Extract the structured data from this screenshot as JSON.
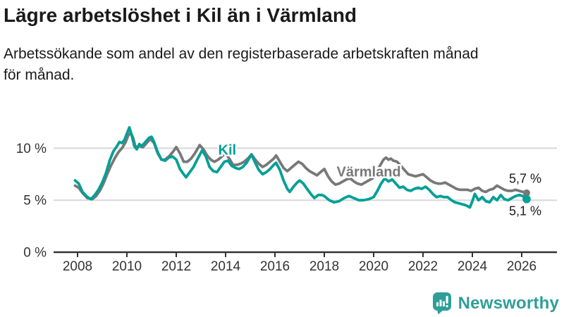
{
  "title": "Lägre arbetslöshet i Kil än i Värmland",
  "subtitle": "Arbetssökande som andel av den registerbaserade arbetskraften månad\nför månad.",
  "branding": {
    "logo_text": "Newsworthy",
    "logo_icon": "bar-chart-speech-bubble-icon",
    "brand_color": "#2f9e98"
  },
  "colors": {
    "kil_line": "#00a096",
    "varmland_line": "#787878",
    "heading_text": "#1a1a1a",
    "axis_text": "#333333",
    "axis_line": "#333333",
    "gridline": "#d8d8d8",
    "end_label_text": "#1a1a1a",
    "background": "#ffffff"
  },
  "chart_data": {
    "type": "line",
    "title": "Lägre arbetslöshet i Kil än i Värmland",
    "subtitle": "Arbetssökande som andel av den registerbaserade arbetskraften månad för månad.",
    "unit": "%",
    "grid": "horizontal",
    "x_axis": {
      "range": [
        2007.9,
        2026.6
      ],
      "ticks": [
        2008,
        2010,
        2012,
        2014,
        2016,
        2018,
        2020,
        2022,
        2024,
        2026
      ],
      "tick_labels": [
        "2008",
        "2010",
        "2012",
        "2014",
        "2016",
        "2018",
        "2020",
        "2022",
        "2024",
        "2026"
      ]
    },
    "y_axis": {
      "range": [
        0,
        13.5
      ],
      "ticks": [
        {
          "value": 0,
          "label": "0 %"
        },
        {
          "value": 5,
          "label": "5 %"
        },
        {
          "value": 10,
          "label": "10 %"
        }
      ]
    },
    "series": [
      {
        "name": "Värmland",
        "color": "#787878",
        "end_label": "5,7 %",
        "end_label_position": "above",
        "label_at": [
          2018.5,
          7.3
        ],
        "points": [
          [
            2007.9,
            6.4
          ],
          [
            2008.05,
            6.2
          ],
          [
            2008.2,
            5.7
          ],
          [
            2008.4,
            5.2
          ],
          [
            2008.6,
            5.1
          ],
          [
            2008.75,
            5.4
          ],
          [
            2008.9,
            5.9
          ],
          [
            2009.05,
            6.6
          ],
          [
            2009.2,
            7.5
          ],
          [
            2009.35,
            8.3
          ],
          [
            2009.5,
            9.0
          ],
          [
            2009.65,
            9.6
          ],
          [
            2009.8,
            10.0
          ],
          [
            2009.95,
            10.6
          ],
          [
            2010.05,
            11.2
          ],
          [
            2010.15,
            11.5
          ],
          [
            2010.25,
            11.0
          ],
          [
            2010.35,
            10.1
          ],
          [
            2010.5,
            10.2
          ],
          [
            2010.65,
            10.1
          ],
          [
            2010.8,
            10.5
          ],
          [
            2010.95,
            10.9
          ],
          [
            2011.1,
            10.5
          ],
          [
            2011.25,
            9.5
          ],
          [
            2011.4,
            8.9
          ],
          [
            2011.55,
            8.9
          ],
          [
            2011.7,
            9.2
          ],
          [
            2011.85,
            9.6
          ],
          [
            2012.0,
            10.1
          ],
          [
            2012.15,
            9.5
          ],
          [
            2012.3,
            8.7
          ],
          [
            2012.45,
            8.7
          ],
          [
            2012.6,
            9.0
          ],
          [
            2012.75,
            9.5
          ],
          [
            2012.95,
            10.3
          ],
          [
            2013.1,
            9.9
          ],
          [
            2013.25,
            9.3
          ],
          [
            2013.4,
            8.9
          ],
          [
            2013.55,
            8.7
          ],
          [
            2013.7,
            8.9
          ],
          [
            2013.85,
            9.2
          ],
          [
            2014.0,
            9.5
          ],
          [
            2014.15,
            9.0
          ],
          [
            2014.3,
            8.4
          ],
          [
            2014.45,
            8.4
          ],
          [
            2014.6,
            8.5
          ],
          [
            2014.75,
            8.7
          ],
          [
            2014.9,
            9.0
          ],
          [
            2015.05,
            9.4
          ],
          [
            2015.2,
            8.9
          ],
          [
            2015.35,
            8.5
          ],
          [
            2015.5,
            8.2
          ],
          [
            2015.65,
            8.4
          ],
          [
            2015.8,
            8.7
          ],
          [
            2015.95,
            9.0
          ],
          [
            2016.05,
            9.3
          ],
          [
            2016.2,
            8.7
          ],
          [
            2016.35,
            8.1
          ],
          [
            2016.5,
            7.8
          ],
          [
            2016.65,
            8.1
          ],
          [
            2016.8,
            8.4
          ],
          [
            2016.95,
            8.7
          ],
          [
            2017.1,
            8.5
          ],
          [
            2017.25,
            8.1
          ],
          [
            2017.4,
            7.8
          ],
          [
            2017.55,
            7.6
          ],
          [
            2017.7,
            7.4
          ],
          [
            2017.85,
            7.7
          ],
          [
            2018.0,
            8.0
          ],
          [
            2018.15,
            7.3
          ],
          [
            2018.3,
            6.8
          ],
          [
            2018.45,
            6.5
          ],
          [
            2018.6,
            6.6
          ],
          [
            2018.75,
            6.8
          ],
          [
            2018.9,
            7.0
          ],
          [
            2019.05,
            7.1
          ],
          [
            2019.2,
            6.8
          ],
          [
            2019.35,
            6.6
          ],
          [
            2019.5,
            6.5
          ],
          [
            2019.65,
            6.7
          ],
          [
            2019.8,
            6.9
          ],
          [
            2019.95,
            7.1
          ],
          [
            2020.1,
            7.6
          ],
          [
            2020.25,
            8.3
          ],
          [
            2020.4,
            8.9
          ],
          [
            2020.5,
            9.1
          ],
          [
            2020.6,
            8.9
          ],
          [
            2020.7,
            9.0
          ],
          [
            2020.8,
            8.8
          ],
          [
            2020.95,
            8.7
          ],
          [
            2021.1,
            8.3
          ],
          [
            2021.25,
            7.9
          ],
          [
            2021.4,
            7.5
          ],
          [
            2021.55,
            7.4
          ],
          [
            2021.7,
            7.3
          ],
          [
            2021.85,
            7.4
          ],
          [
            2022.0,
            7.5
          ],
          [
            2022.15,
            7.2
          ],
          [
            2022.3,
            6.9
          ],
          [
            2022.45,
            6.7
          ],
          [
            2022.6,
            6.6
          ],
          [
            2022.75,
            6.6
          ],
          [
            2022.9,
            6.7
          ],
          [
            2023.05,
            6.5
          ],
          [
            2023.2,
            6.3
          ],
          [
            2023.35,
            6.1
          ],
          [
            2023.5,
            6.0
          ],
          [
            2023.65,
            6.0
          ],
          [
            2023.8,
            6.0
          ],
          [
            2023.95,
            5.9
          ],
          [
            2024.1,
            6.1
          ],
          [
            2024.25,
            6.2
          ],
          [
            2024.4,
            5.9
          ],
          [
            2024.55,
            5.8
          ],
          [
            2024.7,
            6.0
          ],
          [
            2024.85,
            6.1
          ],
          [
            2025.0,
            6.4
          ],
          [
            2025.15,
            6.2
          ],
          [
            2025.3,
            6.0
          ],
          [
            2025.45,
            5.9
          ],
          [
            2025.6,
            5.9
          ],
          [
            2025.75,
            6.0
          ],
          [
            2025.9,
            5.9
          ],
          [
            2026.05,
            5.8
          ],
          [
            2026.2,
            5.7
          ]
        ]
      },
      {
        "name": "Kil",
        "color": "#00a096",
        "end_label": "5,1 %",
        "end_label_position": "below",
        "label_at": [
          2013.7,
          9.4
        ],
        "points": [
          [
            2007.9,
            6.9
          ],
          [
            2008.05,
            6.6
          ],
          [
            2008.2,
            5.8
          ],
          [
            2008.4,
            5.3
          ],
          [
            2008.55,
            5.1
          ],
          [
            2008.7,
            5.5
          ],
          [
            2008.85,
            6.0
          ],
          [
            2009.0,
            6.7
          ],
          [
            2009.15,
            7.6
          ],
          [
            2009.3,
            8.8
          ],
          [
            2009.45,
            9.7
          ],
          [
            2009.6,
            10.2
          ],
          [
            2009.7,
            10.6
          ],
          [
            2009.8,
            10.5
          ],
          [
            2009.9,
            10.8
          ],
          [
            2010.0,
            11.4
          ],
          [
            2010.1,
            12.0
          ],
          [
            2010.2,
            11.2
          ],
          [
            2010.3,
            10.2
          ],
          [
            2010.4,
            9.9
          ],
          [
            2010.5,
            10.4
          ],
          [
            2010.6,
            10.2
          ],
          [
            2010.75,
            10.6
          ],
          [
            2010.9,
            11.0
          ],
          [
            2011.0,
            11.1
          ],
          [
            2011.1,
            10.6
          ],
          [
            2011.25,
            9.6
          ],
          [
            2011.4,
            8.9
          ],
          [
            2011.55,
            8.8
          ],
          [
            2011.7,
            9.1
          ],
          [
            2011.85,
            9.2
          ],
          [
            2012.0,
            8.9
          ],
          [
            2012.15,
            8.0
          ],
          [
            2012.3,
            7.5
          ],
          [
            2012.4,
            7.2
          ],
          [
            2012.55,
            7.7
          ],
          [
            2012.7,
            8.2
          ],
          [
            2012.85,
            8.9
          ],
          [
            2013.05,
            9.8
          ],
          [
            2013.2,
            9.2
          ],
          [
            2013.35,
            8.2
          ],
          [
            2013.5,
            7.8
          ],
          [
            2013.65,
            7.7
          ],
          [
            2013.8,
            8.2
          ],
          [
            2013.95,
            8.7
          ],
          [
            2014.1,
            8.8
          ],
          [
            2014.25,
            8.3
          ],
          [
            2014.4,
            8.1
          ],
          [
            2014.55,
            8.0
          ],
          [
            2014.7,
            8.2
          ],
          [
            2014.85,
            8.6
          ],
          [
            2015.0,
            9.2
          ],
          [
            2015.05,
            9.4
          ],
          [
            2015.2,
            8.6
          ],
          [
            2015.35,
            7.9
          ],
          [
            2015.5,
            7.5
          ],
          [
            2015.65,
            7.7
          ],
          [
            2015.8,
            8.0
          ],
          [
            2015.95,
            8.4
          ],
          [
            2016.05,
            8.6
          ],
          [
            2016.2,
            7.9
          ],
          [
            2016.35,
            6.9
          ],
          [
            2016.5,
            6.1
          ],
          [
            2016.6,
            5.8
          ],
          [
            2016.75,
            6.3
          ],
          [
            2016.9,
            6.7
          ],
          [
            2017.0,
            6.9
          ],
          [
            2017.15,
            6.6
          ],
          [
            2017.3,
            6.1
          ],
          [
            2017.45,
            5.6
          ],
          [
            2017.6,
            5.2
          ],
          [
            2017.75,
            5.5
          ],
          [
            2017.9,
            5.5
          ],
          [
            2018.0,
            5.4
          ],
          [
            2018.2,
            5.0
          ],
          [
            2018.4,
            4.8
          ],
          [
            2018.6,
            4.9
          ],
          [
            2018.8,
            5.2
          ],
          [
            2019.0,
            5.4
          ],
          [
            2019.2,
            5.2
          ],
          [
            2019.4,
            5.0
          ],
          [
            2019.6,
            5.0
          ],
          [
            2019.8,
            5.1
          ],
          [
            2020.0,
            5.3
          ],
          [
            2020.15,
            5.9
          ],
          [
            2020.3,
            6.6
          ],
          [
            2020.45,
            7.1
          ],
          [
            2020.6,
            6.8
          ],
          [
            2020.75,
            7.0
          ],
          [
            2020.9,
            6.6
          ],
          [
            2021.05,
            6.2
          ],
          [
            2021.2,
            6.3
          ],
          [
            2021.35,
            6.0
          ],
          [
            2021.5,
            5.9
          ],
          [
            2021.65,
            6.1
          ],
          [
            2021.8,
            6.2
          ],
          [
            2021.95,
            6.1
          ],
          [
            2022.1,
            6.3
          ],
          [
            2022.25,
            6.0
          ],
          [
            2022.4,
            5.6
          ],
          [
            2022.55,
            5.3
          ],
          [
            2022.7,
            5.4
          ],
          [
            2022.85,
            5.3
          ],
          [
            2023.0,
            5.3
          ],
          [
            2023.15,
            5.0
          ],
          [
            2023.3,
            4.8
          ],
          [
            2023.45,
            4.7
          ],
          [
            2023.6,
            4.6
          ],
          [
            2023.75,
            4.5
          ],
          [
            2023.9,
            4.3
          ],
          [
            2024.0,
            4.9
          ],
          [
            2024.1,
            5.6
          ],
          [
            2024.25,
            5.0
          ],
          [
            2024.4,
            5.3
          ],
          [
            2024.55,
            4.9
          ],
          [
            2024.7,
            4.8
          ],
          [
            2024.85,
            5.3
          ],
          [
            2025.0,
            5.0
          ],
          [
            2025.15,
            5.5
          ],
          [
            2025.3,
            5.1
          ],
          [
            2025.45,
            5.0
          ],
          [
            2025.6,
            5.2
          ],
          [
            2025.75,
            5.4
          ],
          [
            2025.9,
            5.5
          ],
          [
            2026.05,
            5.4
          ],
          [
            2026.2,
            5.1
          ]
        ]
      }
    ]
  }
}
